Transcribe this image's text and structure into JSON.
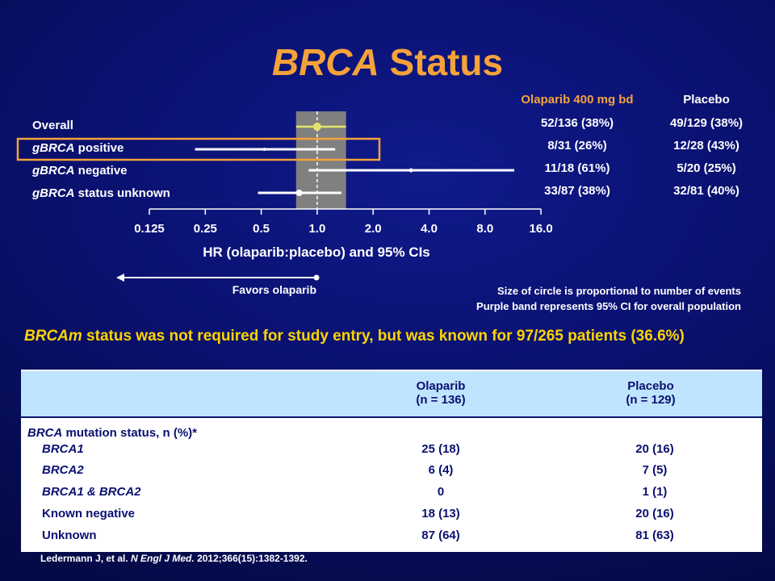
{
  "title": {
    "italic": "BRCA",
    "rest": " Status"
  },
  "columns": {
    "olaparib": "Olaparib 400 mg bd",
    "placebo": "Placebo"
  },
  "chart_data": {
    "type": "forest",
    "xscale": "log2",
    "xlim": [
      0.125,
      16.0
    ],
    "ticks": [
      "0.125",
      "0.25",
      "0.5",
      "1.0",
      "2.0",
      "4.0",
      "8.0",
      "16.0"
    ],
    "xlabel": "HR (olaparib:placebo) and 95% CIs",
    "ci_band": [
      0.77,
      1.43
    ],
    "reference_line": 1.0,
    "rows": [
      {
        "label_italic": "",
        "label_rest": "Overall",
        "hr": 1.0,
        "ci": [
          0.77,
          1.43
        ],
        "olaparib": "52/136 (38%)",
        "placebo": "49/129 (38%)",
        "highlight": false
      },
      {
        "label_italic": "gBRCA",
        "label_rest": " positive",
        "hr": 0.52,
        "ci": [
          0.22,
          1.25
        ],
        "olaparib": "8/31 (26%)",
        "placebo": "12/28 (43%)",
        "highlight": true
      },
      {
        "label_italic": "gBRCA",
        "label_rest": " negative",
        "hr": 3.2,
        "ci": [
          0.9,
          11.5
        ],
        "olaparib": "11/18 (61%)",
        "placebo": "5/20 (25%)",
        "highlight": false
      },
      {
        "label_italic": "gBRCA",
        "label_rest": " status unknown",
        "hr": 0.8,
        "ci": [
          0.48,
          1.35
        ],
        "olaparib": "33/87 (38%)",
        "placebo": "32/81 (40%)",
        "highlight": false
      }
    ],
    "arrow_label": "Favors olaparib"
  },
  "notes": [
    "Size of circle is proportional to number of events",
    "Purple band represents 95% CI for overall population"
  ],
  "statement": {
    "italic": "BRCAm",
    "rest": " status was not required for study entry, but was known for 97/265 patients (36.6%)"
  },
  "table": {
    "header": {
      "olaparib": [
        "Olaparib",
        "(n = 136)"
      ],
      "placebo": [
        "Placebo",
        "(n = 129)"
      ]
    },
    "section": {
      "italic": "BRCA",
      "rest": " mutation status, n (%)*"
    },
    "rows": [
      {
        "label": "BRCA1",
        "italic": true,
        "olaparib": "25 (18)",
        "placebo": "20 (16)"
      },
      {
        "label": "BRCA2",
        "italic": true,
        "olaparib": "6 (4)",
        "placebo": "7 (5)"
      },
      {
        "label": "BRCA1 & BRCA2",
        "italic": true,
        "olaparib": "0",
        "placebo": "1 (1)"
      },
      {
        "label": "Known negative",
        "italic": false,
        "olaparib": "18 (13)",
        "placebo": "20 (16)"
      },
      {
        "label": "Unknown",
        "italic": false,
        "olaparib": "87 (64)",
        "placebo": "81 (63)"
      }
    ]
  },
  "reference": {
    "prefix": "Ledermann J, et al. ",
    "journal": "N Engl J Med.",
    "suffix": " 2012;366(15):1382-1392."
  },
  "colors": {
    "title": "#f5a23a",
    "statement": "#ffd400",
    "highlight": "#f5a23a",
    "marker_overall": "#e3e36a",
    "band": "#808080"
  }
}
